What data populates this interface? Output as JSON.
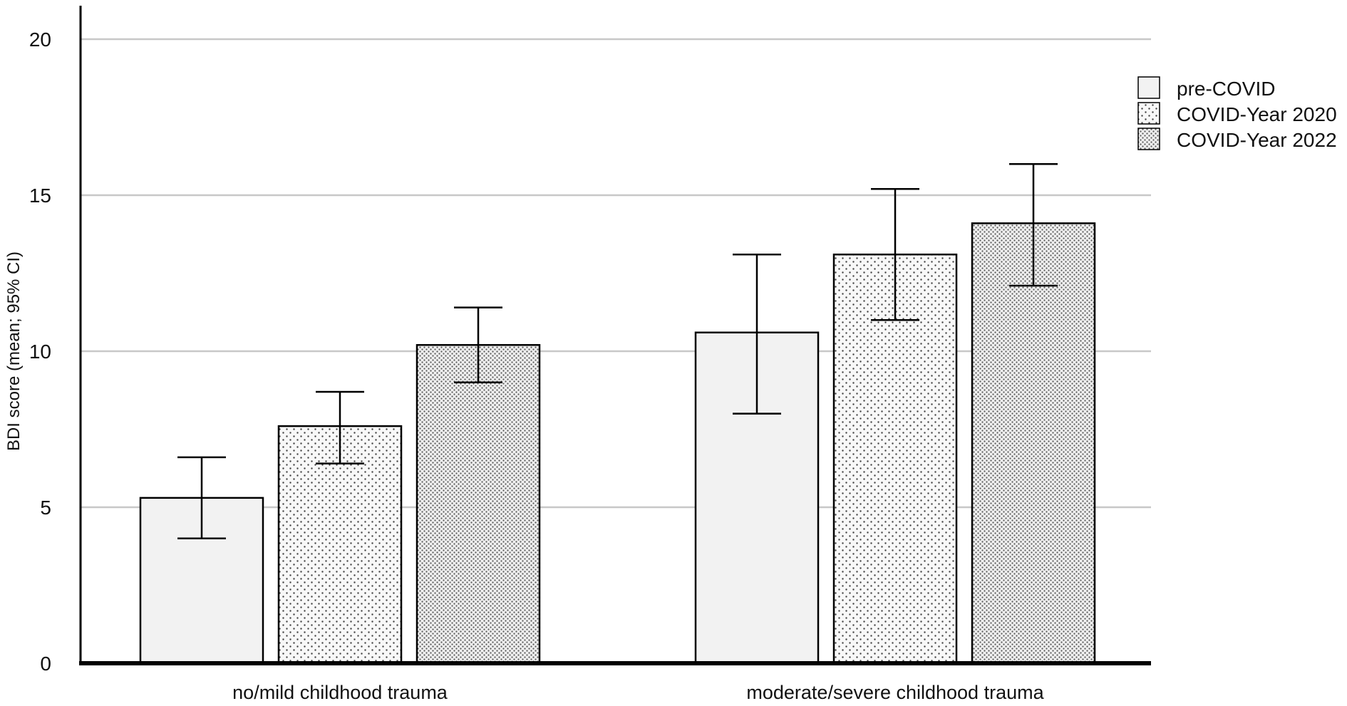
{
  "chart_data": {
    "type": "bar",
    "title": "",
    "xlabel": "",
    "ylabel": "BDI score (mean; 95% CI)",
    "ylim": [
      0,
      20
    ],
    "yticks": [
      0,
      5,
      10,
      15,
      20
    ],
    "categories": [
      "no/mild childhood trauma",
      "moderate/severe childhood trauma"
    ],
    "grid": true,
    "legend_position": "top-right",
    "series": [
      {
        "name": "pre-COVID",
        "pattern": "solid-light",
        "fill": "#f2f2f2",
        "values": [
          5.3,
          10.6
        ],
        "ci_low": [
          4.0,
          8.0
        ],
        "ci_high": [
          6.6,
          13.1
        ]
      },
      {
        "name": "COVID-Year 2020",
        "pattern": "sparse-dots",
        "fill": "#f7f7f7",
        "values": [
          7.6,
          13.1
        ],
        "ci_low": [
          6.4,
          11.0
        ],
        "ci_high": [
          8.7,
          15.2
        ]
      },
      {
        "name": "COVID-Year 2022",
        "pattern": "dense-dots",
        "fill": "#e4e4e4",
        "values": [
          10.2,
          14.1
        ],
        "ci_low": [
          9.0,
          12.1
        ],
        "ci_high": [
          11.4,
          16.0
        ]
      }
    ]
  },
  "colors": {
    "gridline": "#c8c8c8",
    "axis": "#000000",
    "bar_stroke": "#000000"
  }
}
